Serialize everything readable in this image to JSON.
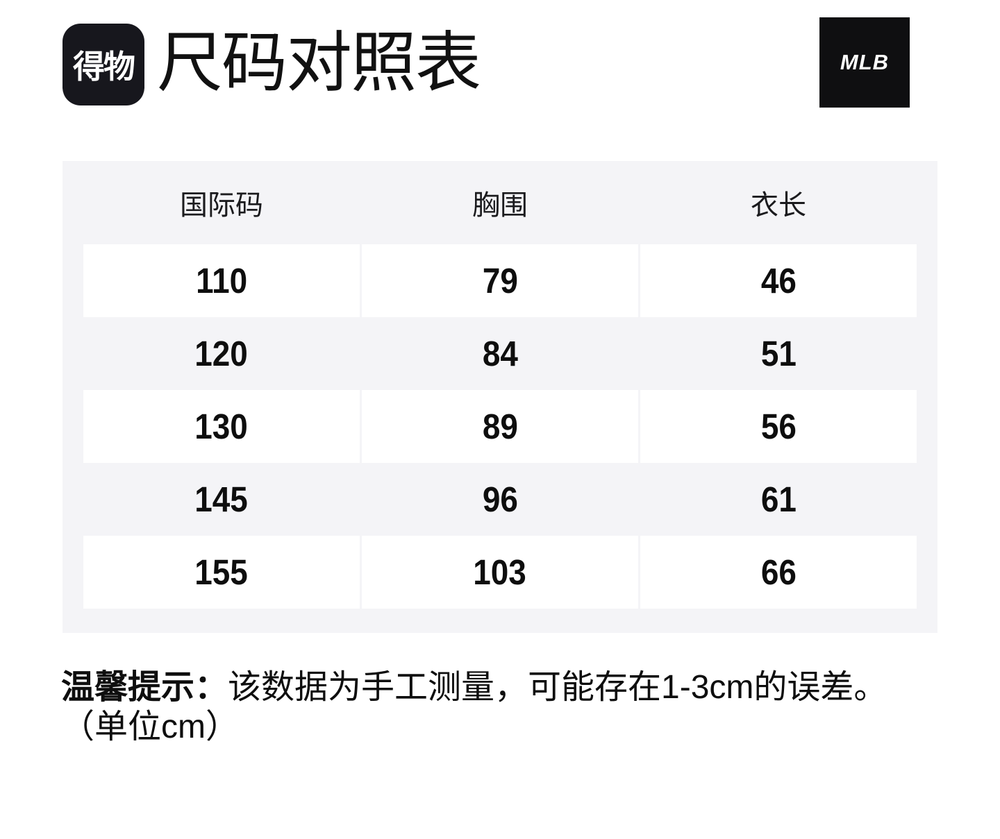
{
  "header": {
    "app_logo_text": "得物",
    "page_title": "尺码对照表",
    "brand_logo_text": "MLB"
  },
  "table": {
    "headers": [
      "国际码",
      "胸围",
      "衣长"
    ],
    "rows": [
      [
        "110",
        "79",
        "46"
      ],
      [
        "120",
        "84",
        "51"
      ],
      [
        "130",
        "89",
        "56"
      ],
      [
        "145",
        "96",
        "61"
      ],
      [
        "155",
        "103",
        "66"
      ]
    ]
  },
  "note": {
    "label": "温馨提示：",
    "text": "该数据为手工测量，可能存在1-3cm的误差。",
    "unit": "（单位cm）"
  },
  "colors": {
    "table_background": "#f4f4f7",
    "row_background": "#ffffff",
    "app_logo_background": "#17171d",
    "brand_logo_background": "#0f0f11",
    "text": "#0e0e0e"
  }
}
